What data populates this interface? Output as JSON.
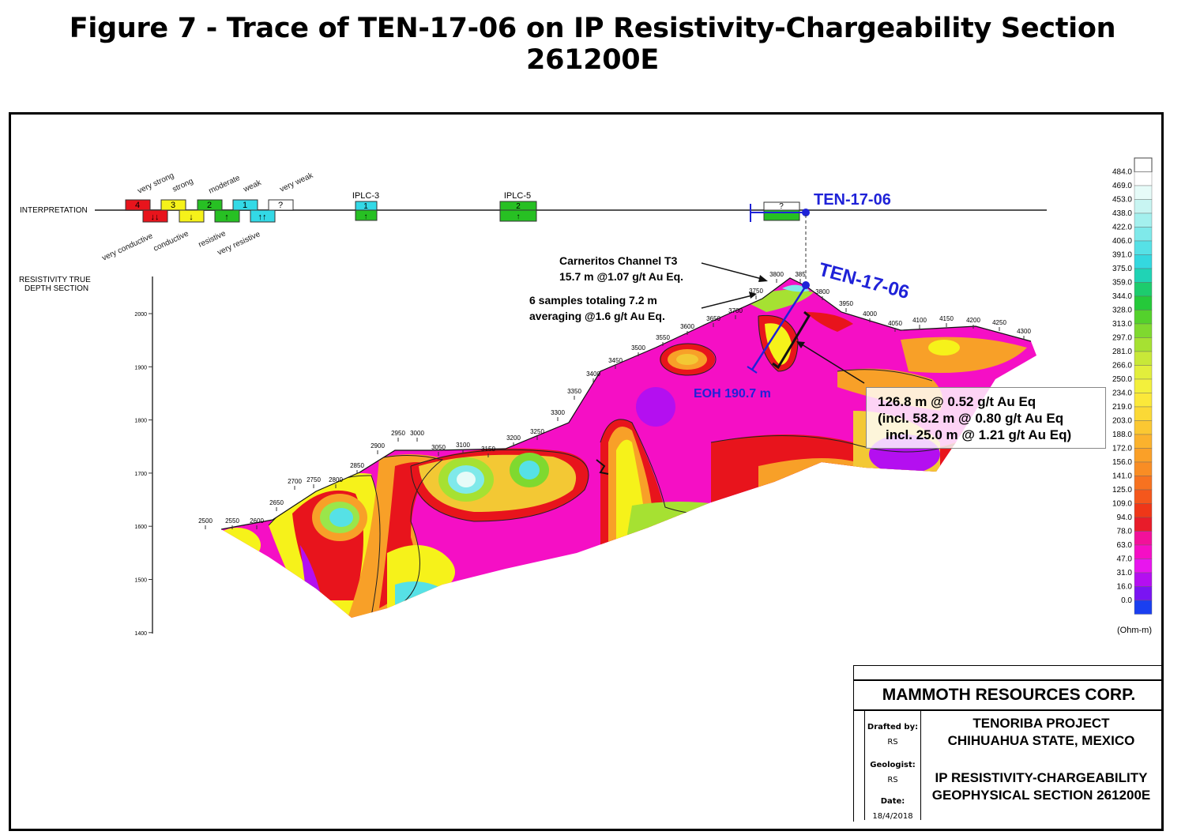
{
  "title": "Figure 7 - Trace of TEN-17-06 on IP Resistivity-Chargeability Section 261200E",
  "interpretation": {
    "label": "INTERPRETATION",
    "boxes": [
      {
        "num": "4",
        "arrow": "↓↓",
        "color": "#e8141c"
      },
      {
        "num": "3",
        "arrow": "↓",
        "color": "#f6f21a"
      },
      {
        "num": "2",
        "arrow": "↑",
        "color": "#27c023"
      },
      {
        "num": "1",
        "arrow": "↑↑",
        "color": "#33d9e6"
      },
      {
        "num": "?",
        "arrow": "",
        "color": "#ffffff"
      }
    ],
    "strength_labels": [
      "very strong",
      "strong",
      "moderate",
      "weak",
      "very weak"
    ],
    "resistivity_labels": [
      "very conductive",
      "conductive",
      "resistive",
      "very resistive"
    ],
    "iplc3": {
      "label": "IPLC-3",
      "num": "1",
      "arrow": "↑"
    },
    "iplc5": {
      "label": "IPLC-5",
      "num": "2",
      "arrow": "↑"
    },
    "unknown_box": "?"
  },
  "resistivity_section_label": [
    "RESISTIVITY TRUE",
    "DEPTH SECTION"
  ],
  "depth_ticks": [
    "2000",
    "1900",
    "1800",
    "1700",
    "1600",
    "1500",
    "1400"
  ],
  "station_labels": [
    "2500",
    "2550",
    "2600",
    "2650",
    "2700",
    "2750",
    "2800",
    "2850",
    "2900",
    "2950",
    "3000",
    "3050",
    "3100",
    "3150",
    "3200",
    "3250",
    "3300",
    "3350",
    "3400",
    "3450",
    "3500",
    "3550",
    "3600",
    "3650",
    "3700",
    "3750",
    "3800",
    "385",
    "3800",
    "3950",
    "4000",
    "4050",
    "4100",
    "4150",
    "4200",
    "4250",
    "4300"
  ],
  "hole": {
    "name": "TEN-17-06",
    "eoh": "EOH 190.7 m"
  },
  "annotations": {
    "channel_t3": [
      "Carneritos Channel T3",
      "15.7 m @1.07 g/t Au Eq."
    ],
    "samples": [
      "6 samples totaling 7.2 m",
      "averaging @1.6 g/t Au Eq."
    ],
    "intercept": [
      "126.8 m @ 0.52 g/t Au Eq",
      "(incl.  58.2 m @ 0.80 g/t Au Eq",
      "incl. 25.0 m @ 1.21 g/t Au Eq)"
    ]
  },
  "color_scale": {
    "values": [
      "484.0",
      "469.0",
      "453.0",
      "438.0",
      "422.0",
      "406.0",
      "391.0",
      "375.0",
      "359.0",
      "344.0",
      "328.0",
      "313.0",
      "297.0",
      "281.0",
      "266.0",
      "250.0",
      "234.0",
      "219.0",
      "203.0",
      "188.0",
      "172.0",
      "156.0",
      "141.0",
      "125.0",
      "109.0",
      "94.0",
      "78.0",
      "63.0",
      "47.0",
      "31.0",
      "16.0",
      "0.0"
    ],
    "colors": [
      "#ffffff",
      "#e6fbf8",
      "#c8f5f2",
      "#a4f0ee",
      "#7fe9ea",
      "#56e1e6",
      "#34d8df",
      "#20d3b5",
      "#1dcc6d",
      "#25c93a",
      "#54d12c",
      "#7fd92f",
      "#a6e132",
      "#c8e838",
      "#e2ee3c",
      "#f3f03c",
      "#fbe83a",
      "#fbd936",
      "#fbc832",
      "#fbb22d",
      "#faa028",
      "#f98d24",
      "#f77220",
      "#f4571c",
      "#ef3718",
      "#e81c2a",
      "#f2119a",
      "#f50fc5",
      "#e815ee",
      "#b40ff0",
      "#7a14f2",
      "#1a3ff0"
    ],
    "unit": "(Ohm-m)"
  },
  "title_block": {
    "company": "MAMMOTH RESOURCES CORP.",
    "drafted_by_label": "Drafted by:",
    "drafted_by": "RS",
    "geologist_label": "Geologist:",
    "geologist": "RS",
    "date_label": "Date:",
    "date": "18/4/2018",
    "project": [
      "TENORIBA PROJECT",
      "CHIHUAHUA STATE, MEXICO"
    ],
    "section": [
      "IP RESISTIVITY-CHARGEABILITY",
      "GEOPHYSICAL SECTION 261200E"
    ]
  }
}
